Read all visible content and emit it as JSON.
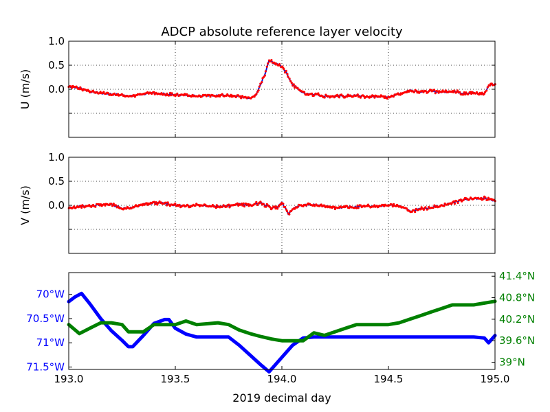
{
  "figure": {
    "title": "ADCP absolute reference layer velocity",
    "xlabel": "2019 decimal day"
  },
  "colors": {
    "u_line": "#1010d0",
    "dots": "#ff0000",
    "lon": "#0000ff",
    "lat": "#008000",
    "axis": "#000000",
    "grid": "#000000"
  },
  "chart_data": [
    {
      "type": "scatter",
      "panel": "u",
      "ylabel": "U (m/s)",
      "xlim": [
        193.0,
        195.0
      ],
      "ylim": [
        -1.0,
        1.0
      ],
      "xticks": [
        193.0,
        193.5,
        194.0,
        194.5,
        195.0
      ],
      "yticks": [
        -0.5,
        0.0,
        0.5,
        1.0
      ],
      "ytick_labels": [
        "",
        "0.0",
        "0.5",
        "1.0"
      ],
      "grid": true,
      "x": [
        193.0,
        193.05,
        193.1,
        193.15,
        193.2,
        193.25,
        193.3,
        193.35,
        193.4,
        193.45,
        193.5,
        193.55,
        193.6,
        193.65,
        193.7,
        193.75,
        193.8,
        193.85,
        193.88,
        193.9,
        193.92,
        193.94,
        193.96,
        194.0,
        194.02,
        194.05,
        194.1,
        194.15,
        194.2,
        194.25,
        194.3,
        194.35,
        194.4,
        194.45,
        194.5,
        194.55,
        194.6,
        194.65,
        194.7,
        194.75,
        194.8,
        194.85,
        194.9,
        194.95,
        194.97,
        195.0
      ],
      "values": [
        0.06,
        0.03,
        -0.05,
        -0.08,
        -0.1,
        -0.12,
        -0.14,
        -0.1,
        -0.08,
        -0.1,
        -0.12,
        -0.12,
        -0.14,
        -0.12,
        -0.13,
        -0.12,
        -0.15,
        -0.2,
        -0.12,
        0.1,
        0.3,
        0.6,
        0.55,
        0.48,
        0.35,
        0.1,
        -0.08,
        -0.1,
        -0.14,
        -0.15,
        -0.14,
        -0.13,
        -0.16,
        -0.15,
        -0.16,
        -0.1,
        -0.02,
        -0.05,
        -0.04,
        -0.06,
        -0.04,
        -0.08,
        -0.08,
        -0.1,
        0.08,
        0.1
      ]
    },
    {
      "type": "scatter",
      "panel": "v",
      "ylabel": "V (m/s)",
      "xlim": [
        193.0,
        195.0
      ],
      "ylim": [
        -1.0,
        1.0
      ],
      "xticks": [
        193.0,
        193.5,
        194.0,
        194.5,
        195.0
      ],
      "yticks": [
        -0.5,
        0.0,
        0.5,
        1.0
      ],
      "ytick_labels": [
        "",
        "0.0",
        "0.5",
        "1.0"
      ],
      "grid": true,
      "x": [
        193.0,
        193.05,
        193.1,
        193.15,
        193.2,
        193.25,
        193.3,
        193.35,
        193.4,
        193.45,
        193.5,
        193.55,
        193.6,
        193.65,
        193.7,
        193.75,
        193.8,
        193.85,
        193.9,
        193.95,
        193.98,
        194.0,
        194.03,
        194.06,
        194.1,
        194.15,
        194.2,
        194.25,
        194.3,
        194.35,
        194.4,
        194.45,
        194.5,
        194.55,
        194.6,
        194.65,
        194.7,
        194.75,
        194.8,
        194.85,
        194.9,
        194.95,
        195.0
      ],
      "values": [
        -0.06,
        -0.02,
        -0.01,
        0.01,
        0.02,
        -0.06,
        -0.05,
        0.02,
        0.05,
        0.04,
        0.0,
        -0.02,
        0.01,
        -0.01,
        -0.02,
        -0.01,
        0.02,
        0.0,
        0.05,
        -0.05,
        -0.04,
        0.06,
        -0.18,
        -0.04,
        0.0,
        0.01,
        -0.01,
        -0.05,
        -0.04,
        -0.03,
        -0.01,
        -0.03,
        0.0,
        -0.01,
        -0.12,
        -0.08,
        -0.04,
        0.0,
        0.05,
        0.12,
        0.14,
        0.15,
        0.1
      ]
    },
    {
      "type": "line",
      "panel": "nav",
      "xlim": [
        193.0,
        195.0
      ],
      "xticks": [
        193.0,
        193.5,
        194.0,
        194.5,
        195.0
      ],
      "xtick_labels": [
        "193.0",
        "193.5",
        "194.0",
        "194.5",
        "195.0"
      ],
      "grid": false,
      "lon_axis": {
        "side": "left",
        "ylim": [
          -71.55,
          -69.55
        ],
        "ticks": [
          -70.0,
          -70.5,
          -71.0,
          -71.5
        ],
        "tick_labels": [
          "70°W",
          "70.5°W",
          "71°W",
          "71.5°W"
        ]
      },
      "lat_axis": {
        "side": "right",
        "ylim": [
          38.8,
          41.5
        ],
        "ticks": [
          39.0,
          39.6,
          40.2,
          40.8,
          41.4
        ],
        "tick_labels": [
          "39°N",
          "39.6°N",
          "40.2°N",
          "40.8°N",
          "41.4°N"
        ]
      },
      "series": [
        {
          "key": "longitude",
          "axis": "left",
          "x": [
            193.0,
            193.03,
            193.06,
            193.1,
            193.15,
            193.2,
            193.25,
            193.28,
            193.3,
            193.35,
            193.4,
            193.45,
            193.47,
            193.5,
            193.55,
            193.6,
            193.7,
            193.75,
            193.8,
            193.85,
            193.9,
            193.94,
            194.0,
            194.05,
            194.1,
            194.15,
            194.2,
            194.3,
            194.5,
            194.7,
            194.9,
            194.95,
            194.97,
            195.0
          ],
          "values": [
            -70.15,
            -70.05,
            -69.98,
            -70.2,
            -70.5,
            -70.75,
            -70.95,
            -71.08,
            -71.08,
            -70.85,
            -70.6,
            -70.52,
            -70.52,
            -70.7,
            -70.82,
            -70.88,
            -70.88,
            -70.88,
            -71.05,
            -71.25,
            -71.45,
            -71.6,
            -71.3,
            -71.05,
            -70.9,
            -70.88,
            -70.88,
            -70.88,
            -70.88,
            -70.88,
            -70.88,
            -70.9,
            -71.0,
            -70.85
          ]
        },
        {
          "key": "latitude",
          "axis": "right",
          "x": [
            193.0,
            193.05,
            193.1,
            193.15,
            193.2,
            193.25,
            193.28,
            193.35,
            193.4,
            193.5,
            193.55,
            193.6,
            193.7,
            193.75,
            193.8,
            193.85,
            193.9,
            193.95,
            194.0,
            194.05,
            194.1,
            194.15,
            194.2,
            194.3,
            194.35,
            194.5,
            194.55,
            194.6,
            194.65,
            194.7,
            194.75,
            194.8,
            194.85,
            194.9,
            194.95,
            195.0
          ],
          "values": [
            40.05,
            39.8,
            39.95,
            40.1,
            40.1,
            40.05,
            39.85,
            39.85,
            40.05,
            40.05,
            40.15,
            40.05,
            40.1,
            40.05,
            39.9,
            39.8,
            39.72,
            39.65,
            39.6,
            39.6,
            39.6,
            39.82,
            39.75,
            39.95,
            40.05,
            40.05,
            40.1,
            40.2,
            40.3,
            40.4,
            40.5,
            40.6,
            40.6,
            40.6,
            40.65,
            40.7
          ]
        }
      ]
    }
  ]
}
